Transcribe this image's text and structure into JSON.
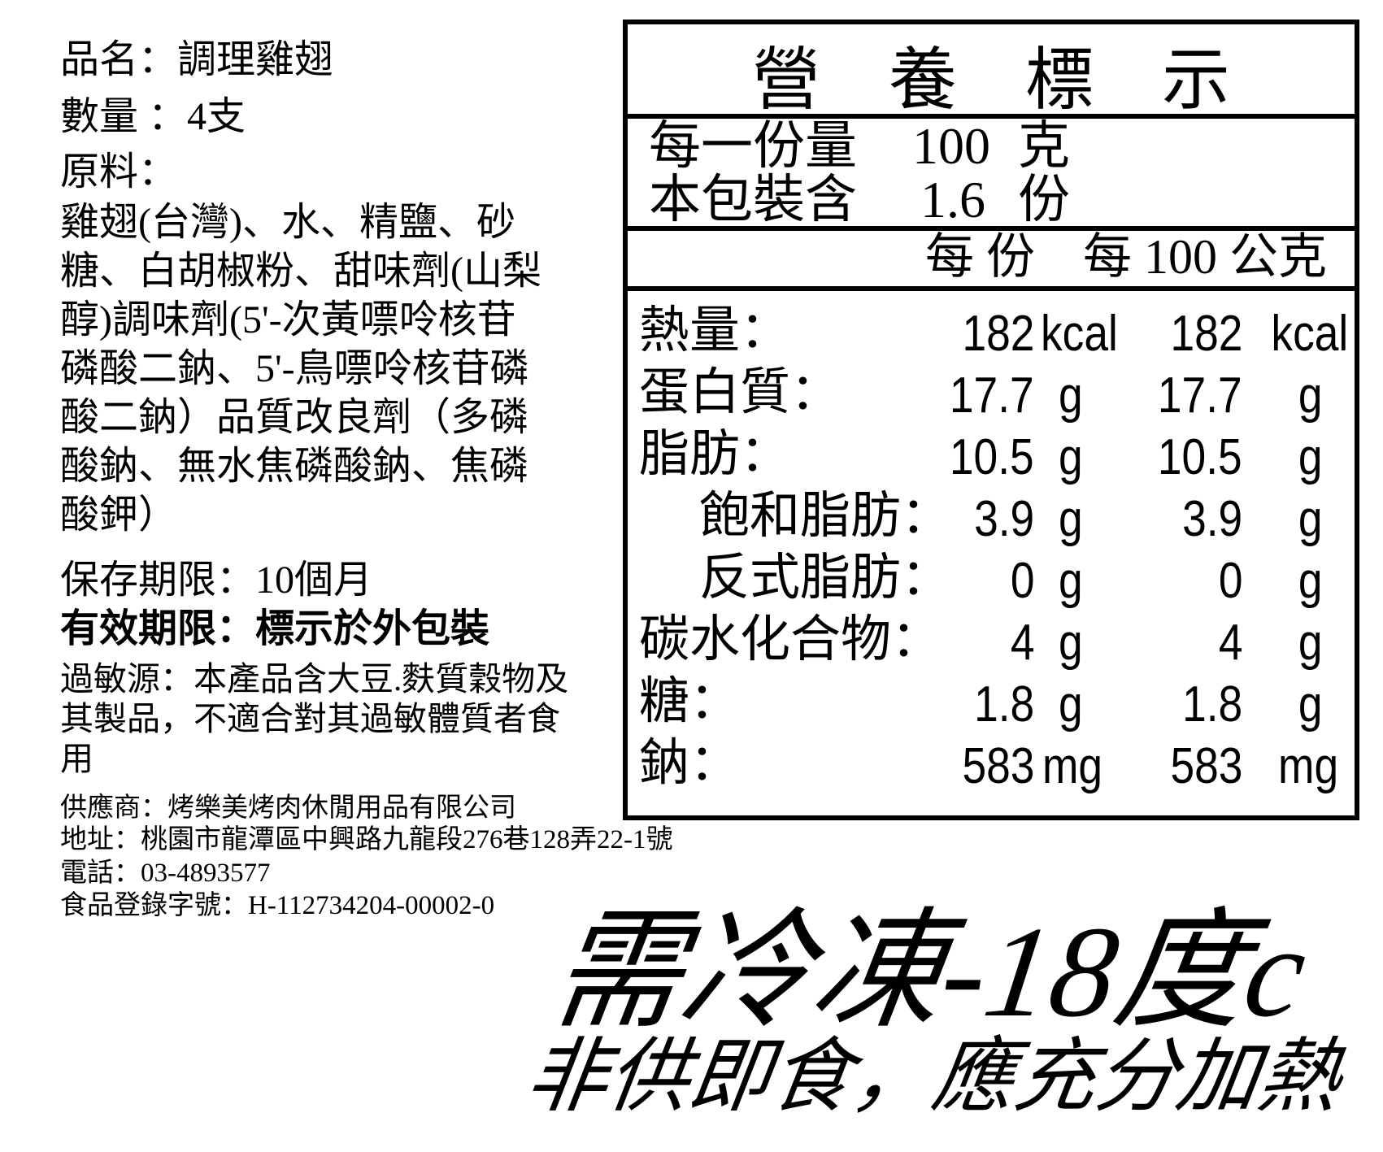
{
  "product": {
    "name_line": "品名：調理雞翅",
    "quantity_line": "數量 ：4支",
    "ingredients_label": "原料：",
    "ingredients_lines": [
      "雞翅(台灣)、水、精鹽、砂",
      "糖、白胡椒粉、甜味劑(山梨",
      "醇)調味劑(5'-次黃嘌呤核苷",
      "磷酸二鈉、5'-鳥嘌呤核苷磷",
      "酸二鈉）品質改良劑（多磷",
      "酸鈉、無水焦磷酸鈉、焦磷",
      "酸鉀）"
    ],
    "shelf_life": "保存期限：10個月",
    "expiry": "有效期限：標示於外包裝",
    "allergen_lines": [
      "過敏源：本產品含大豆.麩質穀物及",
      "其製品，不適合對其過敏體質者食",
      "用"
    ],
    "supplier": "供應商：烤樂美烤肉休閒用品有限公司",
    "address": "地址：桃園市龍潭區中興路九龍段276巷128弄22-1號",
    "phone": "電話：03-4893577",
    "registration": "食品登錄字號：H-112734204-00002-0"
  },
  "nutrition": {
    "title": "營　養　標　示",
    "serving_label": "每一份量",
    "serving_value": "100",
    "serving_unit": "克",
    "servings_label": "本包裝含",
    "servings_value": "1.6",
    "servings_unit": "份",
    "col_per_serving": "每 份",
    "col_per_100g": "每 100 公克",
    "rows": [
      {
        "label": "熱量：",
        "indent": false,
        "v1": "182",
        "u1": "kcal",
        "v2": "182",
        "u2": "kcal"
      },
      {
        "label": "蛋白質：",
        "indent": false,
        "v1": "17.7",
        "u1": "g",
        "v2": "17.7",
        "u2": "g"
      },
      {
        "label": "脂肪：",
        "indent": false,
        "v1": "10.5",
        "u1": "g",
        "v2": "10.5",
        "u2": "g"
      },
      {
        "label": "飽和脂肪：",
        "indent": true,
        "v1": "3.9",
        "u1": "g",
        "v2": "3.9",
        "u2": "g"
      },
      {
        "label": "反式脂肪：",
        "indent": true,
        "v1": "0",
        "u1": "g",
        "v2": "0",
        "u2": "g"
      },
      {
        "label": "碳水化合物：",
        "indent": false,
        "v1": "4",
        "u1": "g",
        "v2": "4",
        "u2": "g"
      },
      {
        "label": "糖：",
        "indent": false,
        "v1": "1.8",
        "u1": "g",
        "v2": "1.8",
        "u2": "g"
      },
      {
        "label": "鈉：",
        "indent": false,
        "v1": "583",
        "u1": "mg",
        "v2": "583",
        "u2": "mg"
      }
    ]
  },
  "warnings": {
    "frozen": "需冷凍-18度c",
    "heat": "非供即食，應充分加熱"
  }
}
